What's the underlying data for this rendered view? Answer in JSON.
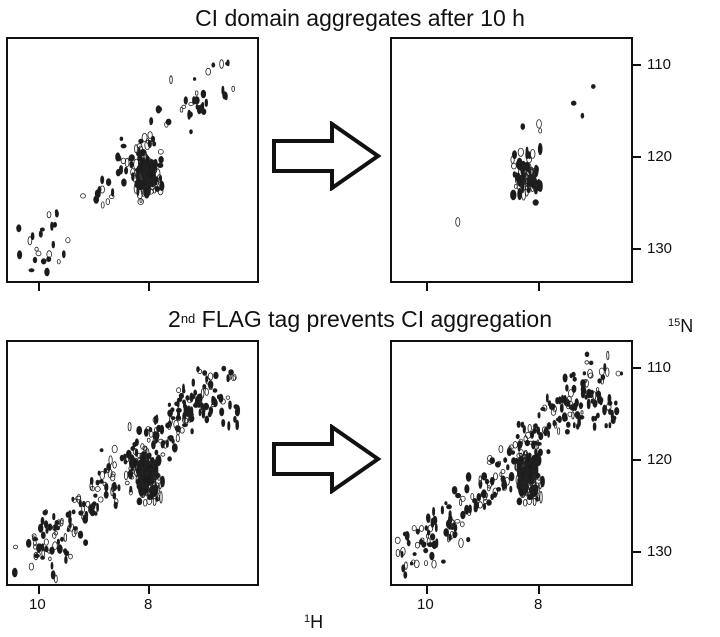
{
  "titles": {
    "top": "CI domain aggregates after 10 h",
    "bottom_sup": "nd",
    "bottom_pre": "2",
    "bottom_rest": " FLAG tag prevents CI aggregation"
  },
  "axes": {
    "n_label_sup": "15",
    "n_label": "N",
    "h_label_sup": "1",
    "h_label": "H",
    "y_ticks": [
      "110",
      "120",
      "130"
    ],
    "x_ticks": [
      "10",
      "8"
    ]
  },
  "panels": [
    {
      "name": "panel-top-left",
      "density": "medium"
    },
    {
      "name": "panel-top-right",
      "density": "low"
    },
    {
      "name": "panel-bottom-left",
      "density": "high"
    },
    {
      "name": "panel-bottom-right",
      "density": "high"
    }
  ]
}
